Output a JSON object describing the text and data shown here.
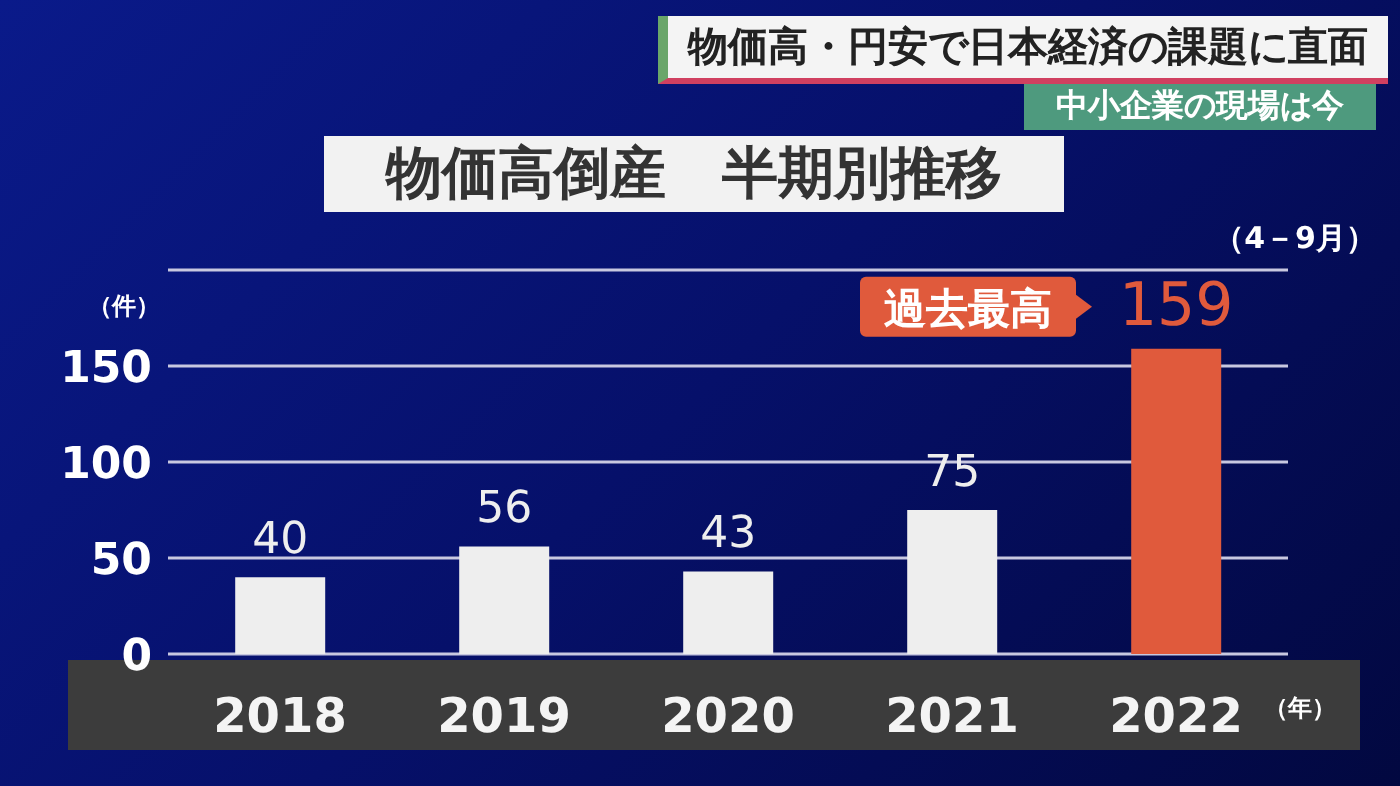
{
  "chart_data": {
    "type": "bar",
    "title": "物価高倒産　半期別推移",
    "ylabel": "（件）",
    "xlabel": "（年）",
    "annotations": [
      "物価高・円安で日本経済の課題に直面",
      "中小企業の現場は今",
      "（4－9月）",
      {
        "text": "過去最高",
        "x": "2022",
        "y": 159
      }
    ],
    "categories": [
      "2018",
      "2019",
      "2020",
      "2021",
      "2022"
    ],
    "values": [
      40,
      56,
      43,
      75,
      159
    ],
    "colors": [
      "#eeeeee",
      "#eeeeee",
      "#eeeeee",
      "#eeeeee",
      "#e05a3c"
    ],
    "ylim": [
      0,
      200
    ],
    "yticks": [
      0,
      50,
      100,
      150,
      {
        "value": 200,
        "label": null
      }
    ],
    "grid": "y",
    "data_labels": true
  }
}
